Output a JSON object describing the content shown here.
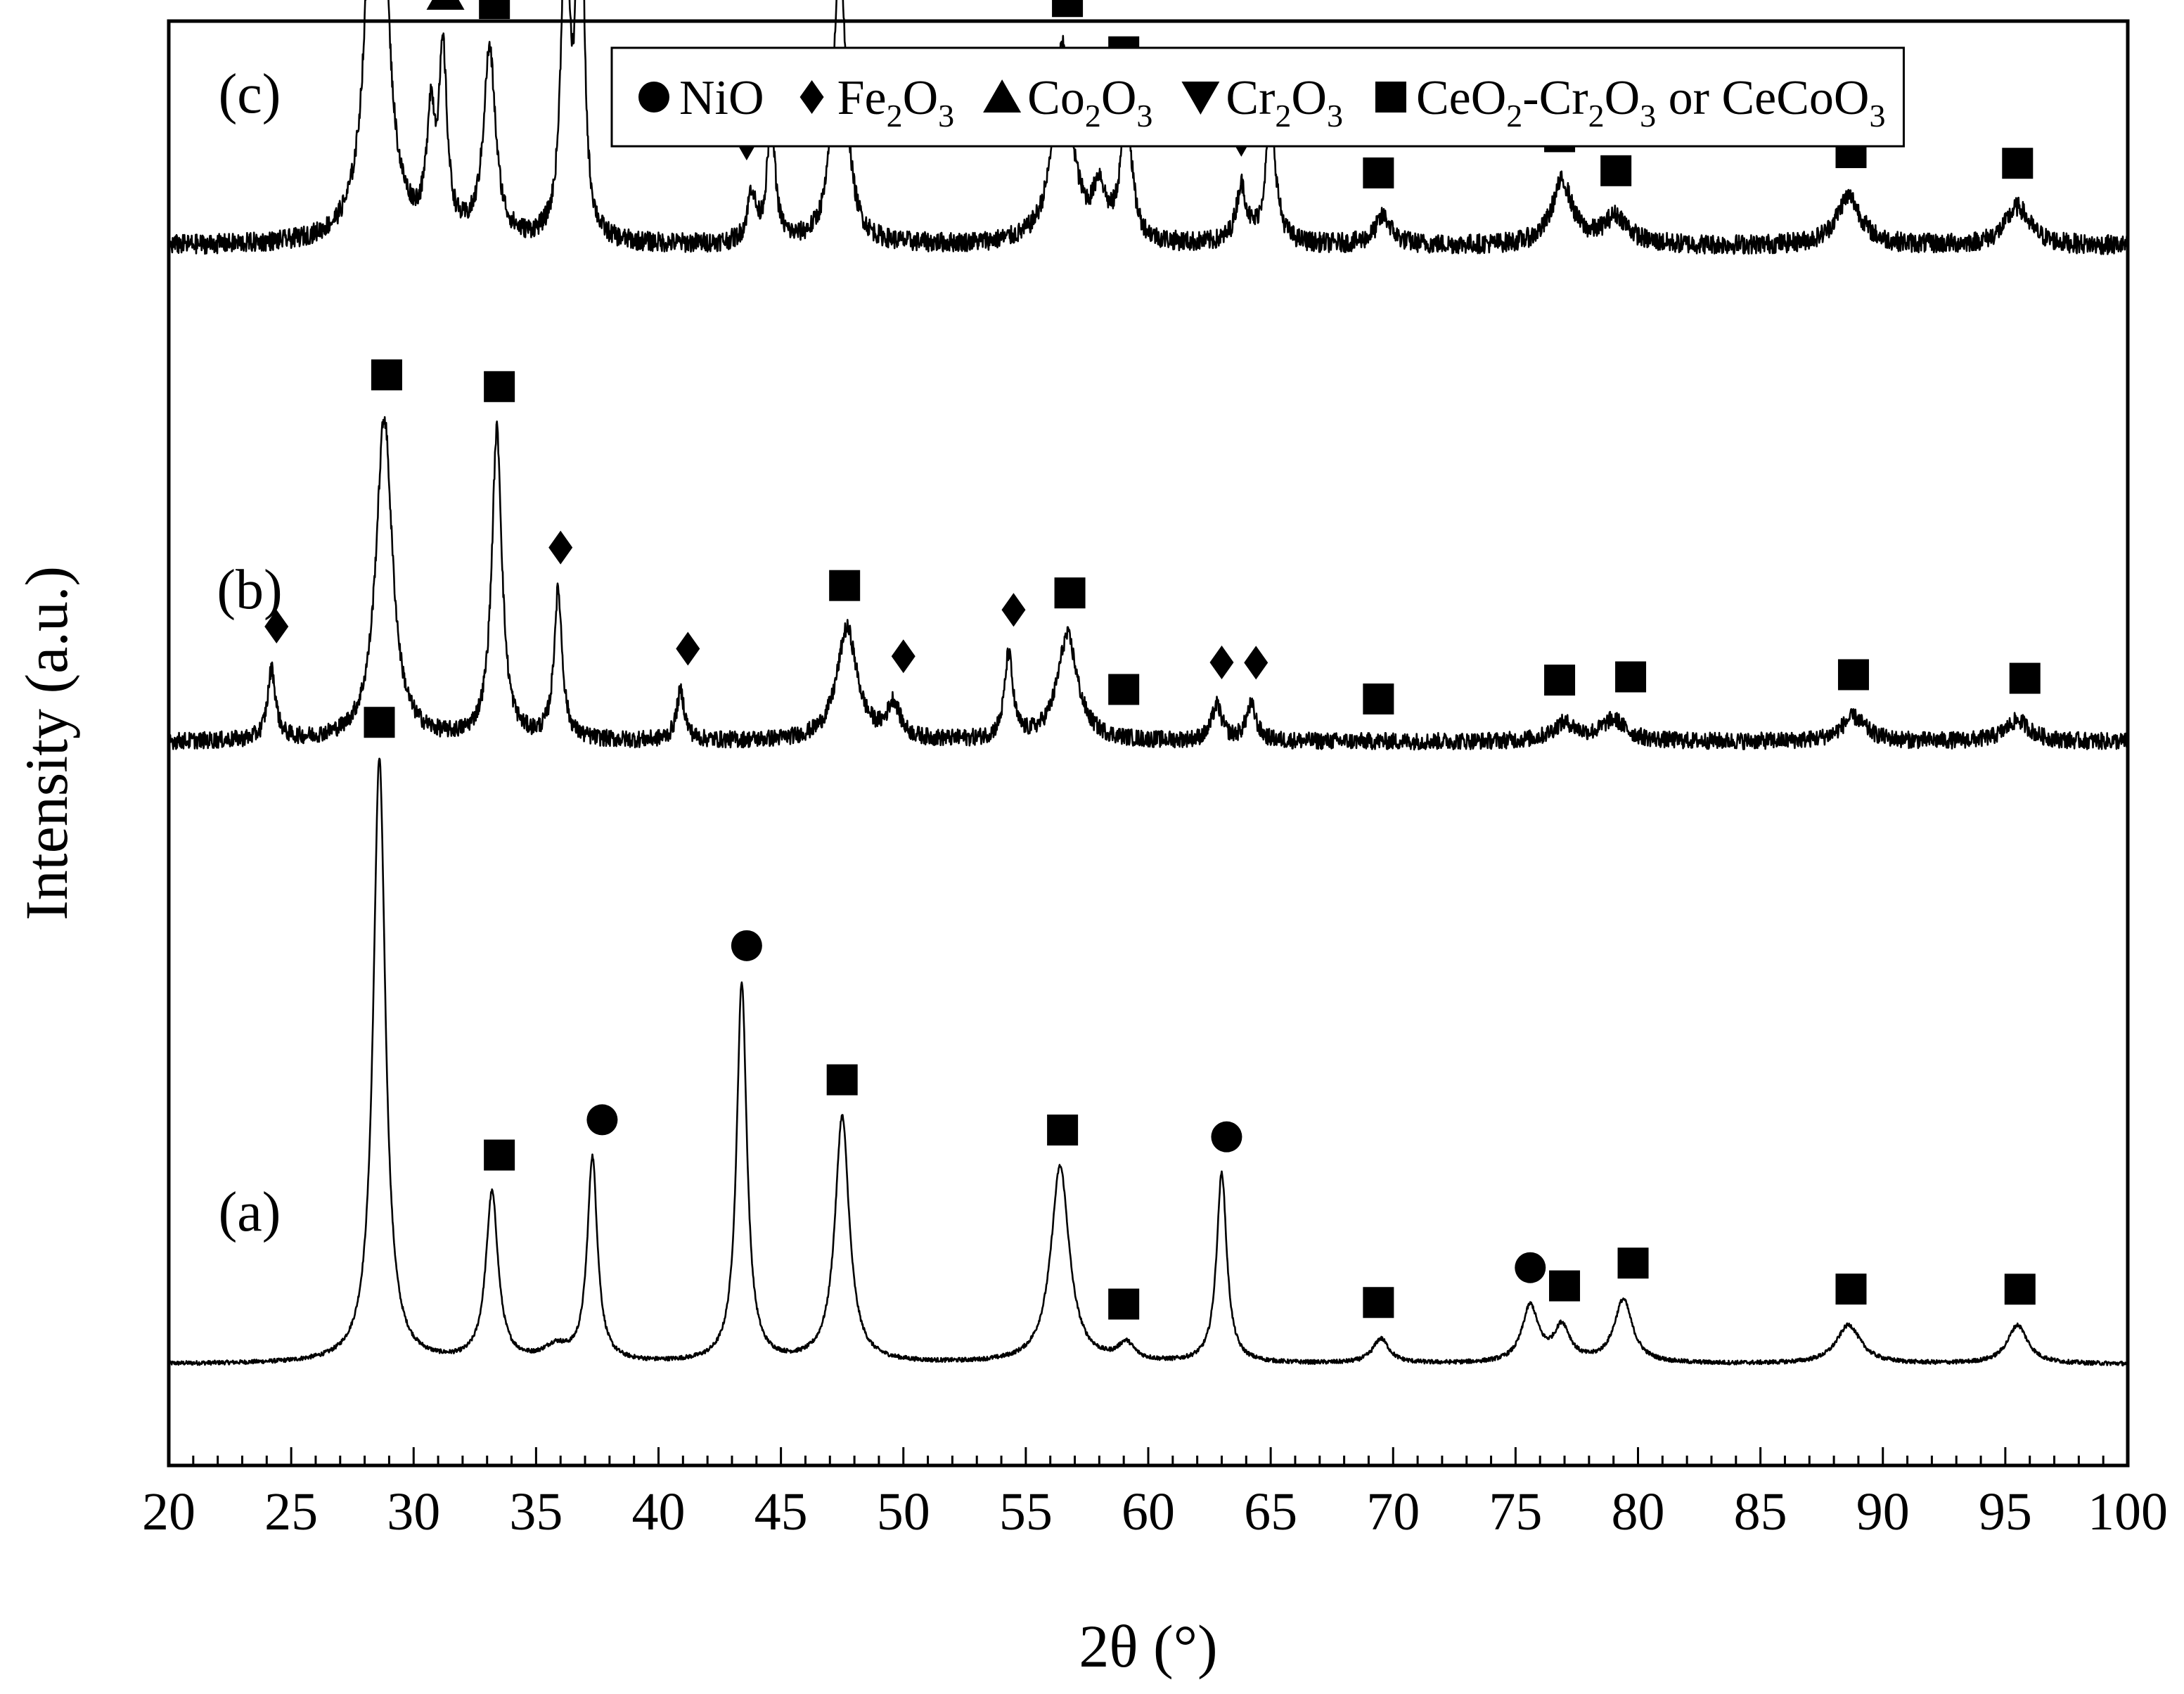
{
  "chart_data": {
    "type": "line",
    "xlabel": "2θ (°)",
    "ylabel": "Intensity (a.u.)",
    "xlim": [
      20,
      100
    ],
    "x_major_ticks": [
      20,
      25,
      30,
      35,
      40,
      45,
      50,
      55,
      60,
      65,
      70,
      75,
      80,
      85,
      90,
      95,
      100
    ],
    "x_minor_step": 1,
    "grid": false,
    "legend_position": "top-right",
    "legend": [
      {
        "marker": "circle",
        "parts": [
          {
            "text": "NiO"
          }
        ]
      },
      {
        "marker": "diamond",
        "parts": [
          {
            "text": "Fe"
          },
          {
            "text": "2",
            "sub": true
          },
          {
            "text": "O"
          },
          {
            "text": "3",
            "sub": true
          }
        ]
      },
      {
        "marker": "triangle-up",
        "parts": [
          {
            "text": "Co"
          },
          {
            "text": "2",
            "sub": true
          },
          {
            "text": "O"
          },
          {
            "text": "3",
            "sub": true
          }
        ]
      },
      {
        "marker": "triangle-down",
        "parts": [
          {
            "text": "Cr"
          },
          {
            "text": "2",
            "sub": true
          },
          {
            "text": "O"
          },
          {
            "text": "3",
            "sub": true
          }
        ]
      },
      {
        "marker": "square",
        "parts": [
          {
            "text": "CeO"
          },
          {
            "text": "2",
            "sub": true
          },
          {
            "text": "-Cr"
          },
          {
            "text": "2",
            "sub": true
          },
          {
            "text": "O"
          },
          {
            "text": "3",
            "sub": true
          },
          {
            "text": " or CeCoO"
          },
          {
            "text": "3",
            "sub": true
          }
        ]
      }
    ],
    "series": [
      {
        "label": "(a)",
        "baseline": 1.0,
        "noise": 0.03,
        "peaks": [
          [
            28.6,
            8.6,
            0.3
          ],
          [
            33.2,
            2.4,
            0.3
          ],
          [
            35.8,
            0.2,
            0.6
          ],
          [
            37.3,
            2.9,
            0.25
          ],
          [
            43.4,
            5.4,
            0.25
          ],
          [
            47.5,
            3.5,
            0.35
          ],
          [
            56.4,
            2.8,
            0.45
          ],
          [
            59.1,
            0.25,
            0.4
          ],
          [
            63.0,
            2.7,
            0.25
          ],
          [
            69.5,
            0.35,
            0.4
          ],
          [
            75.6,
            0.8,
            0.4
          ],
          [
            76.9,
            0.5,
            0.4
          ],
          [
            79.4,
            0.9,
            0.45
          ],
          [
            88.6,
            0.55,
            0.6
          ],
          [
            95.5,
            0.55,
            0.5
          ]
        ],
        "markers": [
          {
            "type": "square",
            "x": 28.6
          },
          {
            "type": "square",
            "x": 33.5
          },
          {
            "type": "circle",
            "x": 37.7
          },
          {
            "type": "circle",
            "x": 43.6
          },
          {
            "type": "square",
            "x": 47.5
          },
          {
            "type": "square",
            "x": 56.5
          },
          {
            "type": "square",
            "x": 59.0
          },
          {
            "type": "circle",
            "x": 63.2
          },
          {
            "type": "square",
            "x": 69.4
          },
          {
            "type": "circle",
            "x": 75.6
          },
          {
            "type": "square",
            "x": 77.0
          },
          {
            "type": "square",
            "x": 79.8
          },
          {
            "type": "square",
            "x": 88.7
          },
          {
            "type": "square",
            "x": 95.6
          }
        ]
      },
      {
        "label": "(b)",
        "baseline": 9.85,
        "noise": 0.12,
        "peaks": [
          [
            24.2,
            1.0,
            0.2
          ],
          [
            28.8,
            4.6,
            0.4
          ],
          [
            33.4,
            4.4,
            0.25
          ],
          [
            35.9,
            2.1,
            0.2
          ],
          [
            40.9,
            0.7,
            0.2
          ],
          [
            47.7,
            1.6,
            0.5
          ],
          [
            49.6,
            0.5,
            0.3
          ],
          [
            54.3,
            1.2,
            0.2
          ],
          [
            56.7,
            1.5,
            0.5
          ],
          [
            62.8,
            0.5,
            0.25
          ],
          [
            64.2,
            0.5,
            0.25
          ],
          [
            77.0,
            0.25,
            0.6
          ],
          [
            79.0,
            0.3,
            0.6
          ],
          [
            88.8,
            0.35,
            0.6
          ],
          [
            95.5,
            0.3,
            0.6
          ]
        ],
        "markers": [
          {
            "type": "diamond",
            "x": 24.4
          },
          {
            "type": "square",
            "x": 28.9
          },
          {
            "type": "square",
            "x": 33.5
          },
          {
            "type": "diamond",
            "x": 36.0
          },
          {
            "type": "diamond",
            "x": 41.2
          },
          {
            "type": "square",
            "x": 47.6
          },
          {
            "type": "diamond",
            "x": 50.0
          },
          {
            "type": "diamond",
            "x": 54.5
          },
          {
            "type": "square",
            "x": 56.8
          },
          {
            "type": "square",
            "x": 59.0
          },
          {
            "type": "diamond",
            "x": 63.0
          },
          {
            "type": "diamond",
            "x": 64.4
          },
          {
            "type": "square",
            "x": 69.4
          },
          {
            "type": "square",
            "x": 76.8
          },
          {
            "type": "square",
            "x": 79.7
          },
          {
            "type": "square",
            "x": 88.8
          },
          {
            "type": "square",
            "x": 95.8
          }
        ]
      },
      {
        "label": "(c)",
        "baseline": 16.9,
        "noise": 0.14,
        "peaks": [
          [
            28.5,
            9.6,
            0.35
          ],
          [
            30.7,
            1.6,
            0.2
          ],
          [
            31.2,
            2.5,
            0.2
          ],
          [
            33.1,
            2.7,
            0.3
          ],
          [
            36.2,
            4.7,
            0.2
          ],
          [
            36.8,
            7.0,
            0.15
          ],
          [
            43.8,
            0.7,
            0.2
          ],
          [
            44.6,
            1.7,
            0.2
          ],
          [
            47.4,
            4.2,
            0.3
          ],
          [
            56.5,
            2.8,
            0.45
          ],
          [
            58.0,
            0.7,
            0.3
          ],
          [
            59.1,
            2.0,
            0.25
          ],
          [
            63.8,
            0.8,
            0.25
          ],
          [
            65.0,
            1.8,
            0.25
          ],
          [
            69.6,
            0.4,
            0.4
          ],
          [
            76.9,
            0.9,
            0.5
          ],
          [
            79.1,
            0.4,
            0.6
          ],
          [
            88.6,
            0.7,
            0.6
          ],
          [
            95.5,
            0.55,
            0.6
          ]
        ],
        "markers": [
          {
            "type": "square",
            "x": 28.6
          },
          {
            "type": "triangle-up",
            "x": 31.3
          },
          {
            "type": "square",
            "x": 33.3
          },
          {
            "type": "triangle-down",
            "x": 36.0
          },
          {
            "type": "triangle-up",
            "x": 37.0
          },
          {
            "type": "triangle-down",
            "x": 43.6
          },
          {
            "type": "triangle-up",
            "x": 44.9
          },
          {
            "type": "square",
            "x": 47.5
          },
          {
            "type": "square",
            "x": 56.7
          },
          {
            "type": "square",
            "x": 59.0
          },
          {
            "type": "triangle-down",
            "x": 58.3
          },
          {
            "type": "triangle-up",
            "x": 60.0
          },
          {
            "type": "triangle-down",
            "x": 63.8
          },
          {
            "type": "triangle-up",
            "x": 65.3
          },
          {
            "type": "square",
            "x": 69.4
          },
          {
            "type": "square",
            "x": 76.8
          },
          {
            "type": "square",
            "x": 79.1
          },
          {
            "type": "square",
            "x": 88.7
          },
          {
            "type": "square",
            "x": 95.5
          }
        ]
      }
    ]
  }
}
